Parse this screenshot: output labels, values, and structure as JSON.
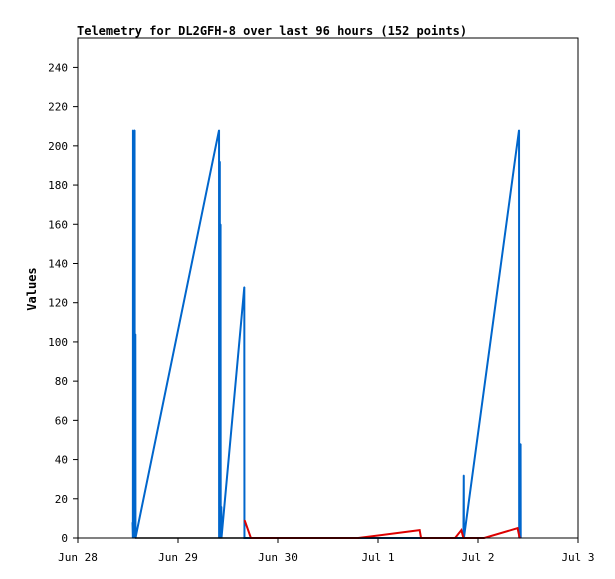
{
  "chart_data": {
    "type": "line",
    "title": "Telemetry for DL2GFH-8 over last 96 hours (152 points)",
    "xlabel": "",
    "ylabel": "Values",
    "ylim": [
      0,
      255
    ],
    "xlim": [
      "2020-06-28T00:00",
      "2020-07-03T00:00"
    ],
    "x_tick_labels": [
      "Jun 28",
      "Jun 29",
      "Jun 30",
      "Jul 1",
      "Jul 2",
      "Jul 3"
    ],
    "y_ticks": [
      0,
      20,
      40,
      60,
      80,
      100,
      120,
      140,
      160,
      180,
      200,
      220,
      240
    ],
    "grid": false,
    "legend": "none",
    "series": [
      {
        "color": "#0066cc",
        "points": [
          [
            "2020-06-28T13:05",
            8
          ],
          [
            "2020-06-28T13:10",
            0
          ],
          [
            "2020-06-28T13:11",
            208
          ],
          [
            "2020-06-28T13:12",
            0
          ],
          [
            "2020-06-28T13:20",
            145
          ],
          [
            "2020-06-28T13:22",
            0
          ],
          [
            "2020-06-28T13:34",
            208
          ],
          [
            "2020-06-28T13:36",
            0
          ],
          [
            "2020-06-28T13:45",
            104
          ],
          [
            "2020-06-28T13:47",
            0
          ],
          [
            "2020-06-29T09:51",
            208
          ],
          [
            "2020-06-29T09:52",
            0
          ],
          [
            "2020-06-29T10:02",
            192
          ],
          [
            "2020-06-29T10:04",
            0
          ],
          [
            "2020-06-29T10:13",
            160
          ],
          [
            "2020-06-29T10:15",
            0
          ],
          [
            "2020-06-29T10:24",
            16
          ],
          [
            "2020-06-29T10:26",
            0
          ],
          [
            "2020-06-29T15:55",
            128
          ],
          [
            "2020-06-29T15:57",
            0
          ],
          [
            "2020-07-01T20:30",
            0
          ],
          [
            "2020-07-01T20:35",
            32
          ],
          [
            "2020-07-01T20:37",
            0
          ],
          [
            "2020-07-02T09:51",
            208
          ],
          [
            "2020-07-02T09:53",
            0
          ],
          [
            "2020-07-02T10:13",
            48
          ],
          [
            "2020-07-02T10:15",
            0
          ]
        ]
      },
      {
        "color": "#dd0000",
        "points": [
          [
            "2020-06-29T16:00",
            9
          ],
          [
            "2020-06-29T17:30",
            0
          ],
          [
            "2020-06-30T19:15",
            0
          ],
          [
            "2020-07-01T10:00",
            4
          ],
          [
            "2020-07-01T10:20",
            0
          ],
          [
            "2020-07-01T18:30",
            0
          ],
          [
            "2020-07-01T20:00",
            4
          ],
          [
            "2020-07-01T20:30",
            0
          ],
          [
            "2020-07-02T01:30",
            0
          ],
          [
            "2020-07-02T09:30",
            5
          ],
          [
            "2020-07-02T10:00",
            0
          ]
        ]
      },
      {
        "color": "#000000",
        "points": [
          [
            "2020-06-28T13:40",
            0
          ],
          [
            "2020-06-30T19:15",
            0
          ],
          [
            "2020-07-01T18:30",
            0
          ],
          [
            "2020-07-02T01:30",
            0
          ]
        ]
      }
    ]
  }
}
